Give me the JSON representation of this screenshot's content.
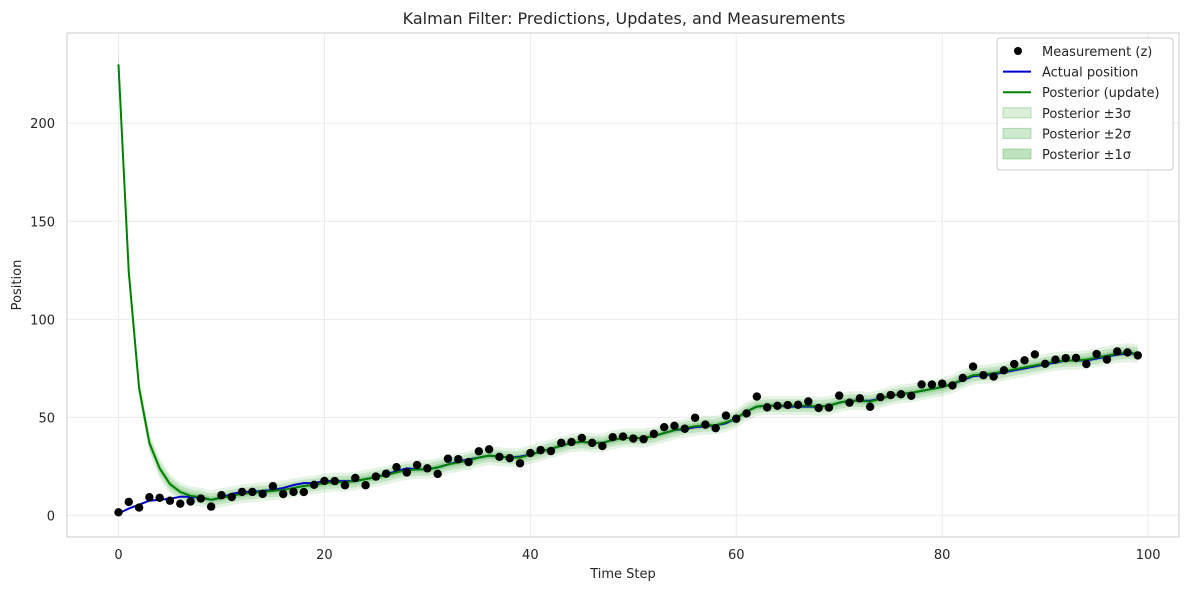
{
  "chart_data": {
    "type": "line",
    "title": "Kalman Filter: Predictions, Updates, and Measurements",
    "xlabel": "Time Step",
    "ylabel": "Position",
    "xlim": [
      -5,
      103
    ],
    "ylim": [
      -11,
      246
    ],
    "xticks": [
      0,
      20,
      40,
      60,
      80,
      100
    ],
    "yticks": [
      0,
      50,
      100,
      150,
      200
    ],
    "grid": true,
    "legend_position": "top-right",
    "colors": {
      "measurement": "#000000",
      "actual": "#0000cc",
      "posterior": "#008000",
      "band": "#2ca02c",
      "grid": "#ebebeb",
      "spine": "#cccccc"
    },
    "legend": [
      {
        "label": "Measurement (z)",
        "kind": "marker",
        "color": "#000000"
      },
      {
        "label": "Actual position",
        "kind": "line",
        "color": "#0000cc"
      },
      {
        "label": "Posterior (update)",
        "kind": "line",
        "color": "#008000"
      },
      {
        "label": "Posterior ±3σ",
        "kind": "patch",
        "color": "#2ca02c",
        "opacity": 0.12
      },
      {
        "label": "Posterior ±2σ",
        "kind": "patch",
        "color": "#2ca02c",
        "opacity": 0.18
      },
      {
        "label": "Posterior ±1σ",
        "kind": "patch",
        "color": "#2ca02c",
        "opacity": 0.25
      }
    ],
    "x": [
      0,
      1,
      2,
      3,
      4,
      5,
      6,
      7,
      8,
      9,
      10,
      11,
      12,
      13,
      14,
      15,
      16,
      17,
      18,
      19,
      20,
      21,
      22,
      23,
      24,
      25,
      26,
      27,
      28,
      29,
      30,
      31,
      32,
      33,
      34,
      35,
      36,
      37,
      38,
      39,
      40,
      41,
      42,
      43,
      44,
      45,
      46,
      47,
      48,
      49,
      50,
      51,
      52,
      53,
      54,
      55,
      56,
      57,
      58,
      59,
      60,
      61,
      62,
      63,
      64,
      65,
      66,
      67,
      68,
      69,
      70,
      71,
      72,
      73,
      74,
      75,
      76,
      77,
      78,
      79,
      80,
      81,
      82,
      83,
      84,
      85,
      86,
      87,
      88,
      89,
      90,
      91,
      92,
      93,
      94,
      95,
      96,
      97,
      98,
      99
    ],
    "series": [
      {
        "name": "Measurement (z)",
        "style": "scatter",
        "values": [
          1.6,
          6.9,
          4.0,
          9.3,
          9.0,
          7.5,
          6.0,
          7.1,
          8.6,
          4.5,
          10.3,
          9.4,
          12.0,
          12.0,
          11.0,
          14.9,
          10.9,
          12.0,
          11.9,
          15.6,
          17.6,
          17.5,
          15.4,
          19.1,
          15.4,
          19.8,
          21.3,
          24.6,
          21.9,
          25.7,
          24.0,
          21.2,
          28.9,
          28.7,
          27.2,
          32.7,
          33.7,
          29.9,
          29.2,
          26.6,
          31.8,
          33.3,
          32.8,
          37.0,
          37.4,
          39.5,
          37.0,
          35.4,
          39.9,
          40.2,
          39.2,
          38.9,
          41.6,
          45.0,
          45.7,
          44.2,
          49.8,
          46.3,
          44.5,
          50.9,
          49.3,
          52.0,
          60.6,
          55.1,
          55.9,
          56.3,
          56.4,
          58.1,
          54.8,
          55.0,
          61.1,
          57.5,
          59.7,
          55.4,
          60.3,
          61.4,
          61.8,
          61.0,
          66.8,
          66.7,
          67.2,
          66.3,
          70.1,
          75.9,
          71.5,
          70.8,
          74.0,
          77.2,
          79.1,
          82.1,
          77.3,
          79.4,
          80.2,
          80.3,
          77.2,
          82.3,
          79.5,
          83.6,
          83.1,
          81.6
        ]
      },
      {
        "name": "Actual position",
        "style": "line",
        "values": [
          1.0,
          3.5,
          5.5,
          7.5,
          8.0,
          8.5,
          9.5,
          9.5,
          9.0,
          8.0,
          9.0,
          11.0,
          12.0,
          12.0,
          12.5,
          13.0,
          14.0,
          15.5,
          16.5,
          16.5,
          17.5,
          17.5,
          17.5,
          17.5,
          18.5,
          19.5,
          21.0,
          22.5,
          24.0,
          23.5,
          23.5,
          24.5,
          26.0,
          27.5,
          28.5,
          29.5,
          30.5,
          30.0,
          29.5,
          30.0,
          31.0,
          32.5,
          34.0,
          35.5,
          37.0,
          37.5,
          37.0,
          37.0,
          38.5,
          39.5,
          39.5,
          39.5,
          40.5,
          42.0,
          43.5,
          44.0,
          45.0,
          45.5,
          46.0,
          47.0,
          49.5,
          53.0,
          55.5,
          56.0,
          56.0,
          55.5,
          55.5,
          55.5,
          55.5,
          56.0,
          57.5,
          58.5,
          58.5,
          58.5,
          59.5,
          61.0,
          62.0,
          62.5,
          63.5,
          64.5,
          65.5,
          67.0,
          69.0,
          71.0,
          71.5,
          72.0,
          73.0,
          74.0,
          75.0,
          76.0,
          77.0,
          78.0,
          79.0,
          79.0,
          79.0,
          80.0,
          81.0,
          82.0,
          82.5,
          82.5
        ]
      },
      {
        "name": "Posterior (update)",
        "style": "line",
        "values": [
          230.0,
          124.0,
          65.0,
          37.0,
          24.0,
          16.0,
          12.0,
          10.0,
          9.3,
          8.0,
          9.0,
          10.0,
          11.0,
          11.5,
          12.0,
          12.5,
          13.0,
          14.0,
          15.0,
          15.5,
          16.5,
          17.0,
          17.0,
          17.5,
          18.5,
          19.5,
          20.5,
          22.0,
          23.0,
          23.5,
          23.5,
          24.5,
          26.0,
          27.0,
          28.0,
          29.5,
          30.5,
          30.0,
          29.5,
          29.5,
          31.0,
          32.5,
          34.0,
          35.5,
          37.0,
          37.5,
          37.0,
          37.0,
          38.5,
          39.5,
          39.5,
          39.5,
          40.5,
          42.0,
          43.5,
          44.5,
          45.5,
          46.0,
          46.0,
          47.5,
          49.5,
          53.0,
          55.5,
          56.0,
          56.0,
          56.0,
          56.0,
          56.0,
          55.5,
          56.0,
          57.5,
          58.5,
          58.5,
          58.0,
          59.5,
          61.0,
          62.0,
          62.5,
          63.5,
          64.5,
          65.5,
          67.0,
          69.5,
          71.5,
          72.0,
          72.5,
          73.5,
          74.5,
          75.5,
          76.5,
          77.5,
          78.5,
          79.0,
          79.0,
          79.5,
          80.5,
          81.5,
          82.5,
          83.0,
          82.5
        ]
      }
    ],
    "posterior_sigma": [
      2.2,
      2.0,
      1.9,
      1.8,
      1.7,
      1.7,
      1.6,
      1.6,
      1.6,
      1.6
    ]
  }
}
